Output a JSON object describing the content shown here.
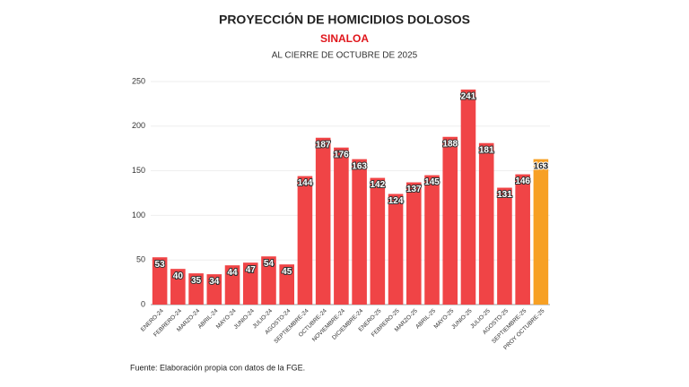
{
  "chart_data": {
    "type": "bar",
    "title": "PROYECCIÓN DE HOMICIDIOS DOLOSOS",
    "subtitle": "SINALOA",
    "note": "AL CIERRE DE OCTUBRE DE 2025",
    "source": "Fuente: Elaboración propia con datos de la FGE.",
    "categories": [
      "ENERO-24",
      "FEBRERO-24",
      "MARZO-24",
      "ABRIL-24",
      "MAYO-24",
      "JUNIO-24",
      "JULIO-24",
      "AGOSTO-24",
      "SEPTIEMBRE-24",
      "OCTUBRE-24",
      "NOVIEMBRE-24",
      "DICIEMBRE-24",
      "ENERO-25",
      "FEBRERO-25",
      "MARZO-25",
      "ABRIL-25",
      "MAYO-25",
      "JUNIO-25",
      "JULIO-25",
      "AGOSTO-25",
      "SEPTIEMBRE-25",
      "PROY OCTUBRE-25"
    ],
    "values": [
      53,
      40,
      35,
      34,
      44,
      47,
      54,
      45,
      144,
      187,
      176,
      163,
      142,
      124,
      137,
      145,
      188,
      241,
      181,
      131,
      146,
      163
    ],
    "colors": [
      "#f04446",
      "#f04446",
      "#f04446",
      "#f04446",
      "#f04446",
      "#f04446",
      "#f04446",
      "#f04446",
      "#f04446",
      "#f04446",
      "#f04446",
      "#f04446",
      "#f04446",
      "#f04446",
      "#f04446",
      "#f04446",
      "#f04446",
      "#f04446",
      "#f04446",
      "#f04446",
      "#f04446",
      "#f7a024"
    ],
    "ylim": [
      0,
      250
    ],
    "yticks": [
      0,
      50,
      100,
      150,
      200,
      250
    ],
    "grid": true
  }
}
